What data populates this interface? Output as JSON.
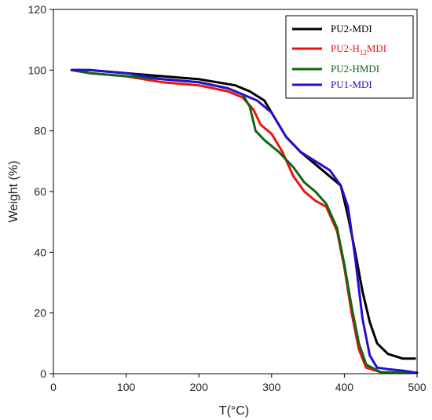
{
  "chart_data": {
    "type": "line",
    "xlabel": "T(°C)",
    "ylabel": "Weight (%)",
    "xlim": [
      0,
      500
    ],
    "ylim": [
      0,
      120
    ],
    "xticks": [
      "0",
      "100",
      "200",
      "300",
      "400",
      "500"
    ],
    "yticks": [
      "0",
      "20",
      "40",
      "60",
      "80",
      "100",
      "120"
    ],
    "grid": false,
    "legend_position": "top-right",
    "series": [
      {
        "name": "PU2-MDI",
        "legend_main": "PU2-MDI",
        "legend_sub": "",
        "legend_tail": "",
        "color": "#000000",
        "x": [
          25,
          50,
          100,
          150,
          200,
          250,
          270,
          290,
          300,
          320,
          340,
          360,
          380,
          395,
          405,
          415,
          425,
          435,
          445,
          460,
          480,
          497
        ],
        "y": [
          100,
          100,
          99,
          98,
          97,
          95,
          93,
          90,
          86,
          78,
          73,
          69,
          65,
          62,
          52,
          40,
          27,
          17,
          10,
          6.5,
          5,
          5
        ]
      },
      {
        "name": "PU2-H12MDI",
        "legend_main": "PU2-H",
        "legend_sub": "12",
        "legend_tail": "MDI",
        "color": "#ee1111",
        "x": [
          25,
          50,
          100,
          150,
          200,
          240,
          260,
          275,
          285,
          300,
          315,
          330,
          345,
          360,
          375,
          390,
          400,
          410,
          420,
          430,
          450,
          500
        ],
        "y": [
          100,
          99,
          98,
          96,
          95,
          93,
          91,
          87,
          82,
          79,
          73,
          65,
          60,
          57,
          55,
          47,
          35,
          20,
          8,
          2,
          0.5,
          0.3
        ]
      },
      {
        "name": "PU2-HMDI",
        "legend_main": "PU2-HMDI",
        "legend_sub": "",
        "legend_tail": "",
        "color": "#116611",
        "x": [
          25,
          50,
          100,
          150,
          200,
          240,
          260,
          270,
          278,
          290,
          310,
          330,
          345,
          360,
          375,
          390,
          400,
          410,
          420,
          430,
          450,
          500
        ],
        "y": [
          100,
          99,
          98,
          97,
          96,
          94,
          92,
          88,
          80,
          77,
          73,
          68,
          63,
          60,
          56,
          48,
          36,
          22,
          10,
          3,
          0.5,
          0.3
        ]
      },
      {
        "name": "PU1-MDI",
        "legend_main": "PU1-MDI",
        "legend_sub": "",
        "legend_tail": "",
        "color": "#2211cc",
        "x": [
          25,
          50,
          100,
          150,
          200,
          240,
          260,
          280,
          300,
          320,
          340,
          360,
          380,
          395,
          405,
          415,
          425,
          435,
          445,
          460,
          480,
          500
        ],
        "y": [
          100,
          100,
          99,
          97,
          96,
          94,
          92,
          90,
          86,
          78,
          73,
          70,
          67,
          62,
          55,
          38,
          18,
          6,
          2,
          1.5,
          1,
          0.3
        ]
      }
    ]
  }
}
